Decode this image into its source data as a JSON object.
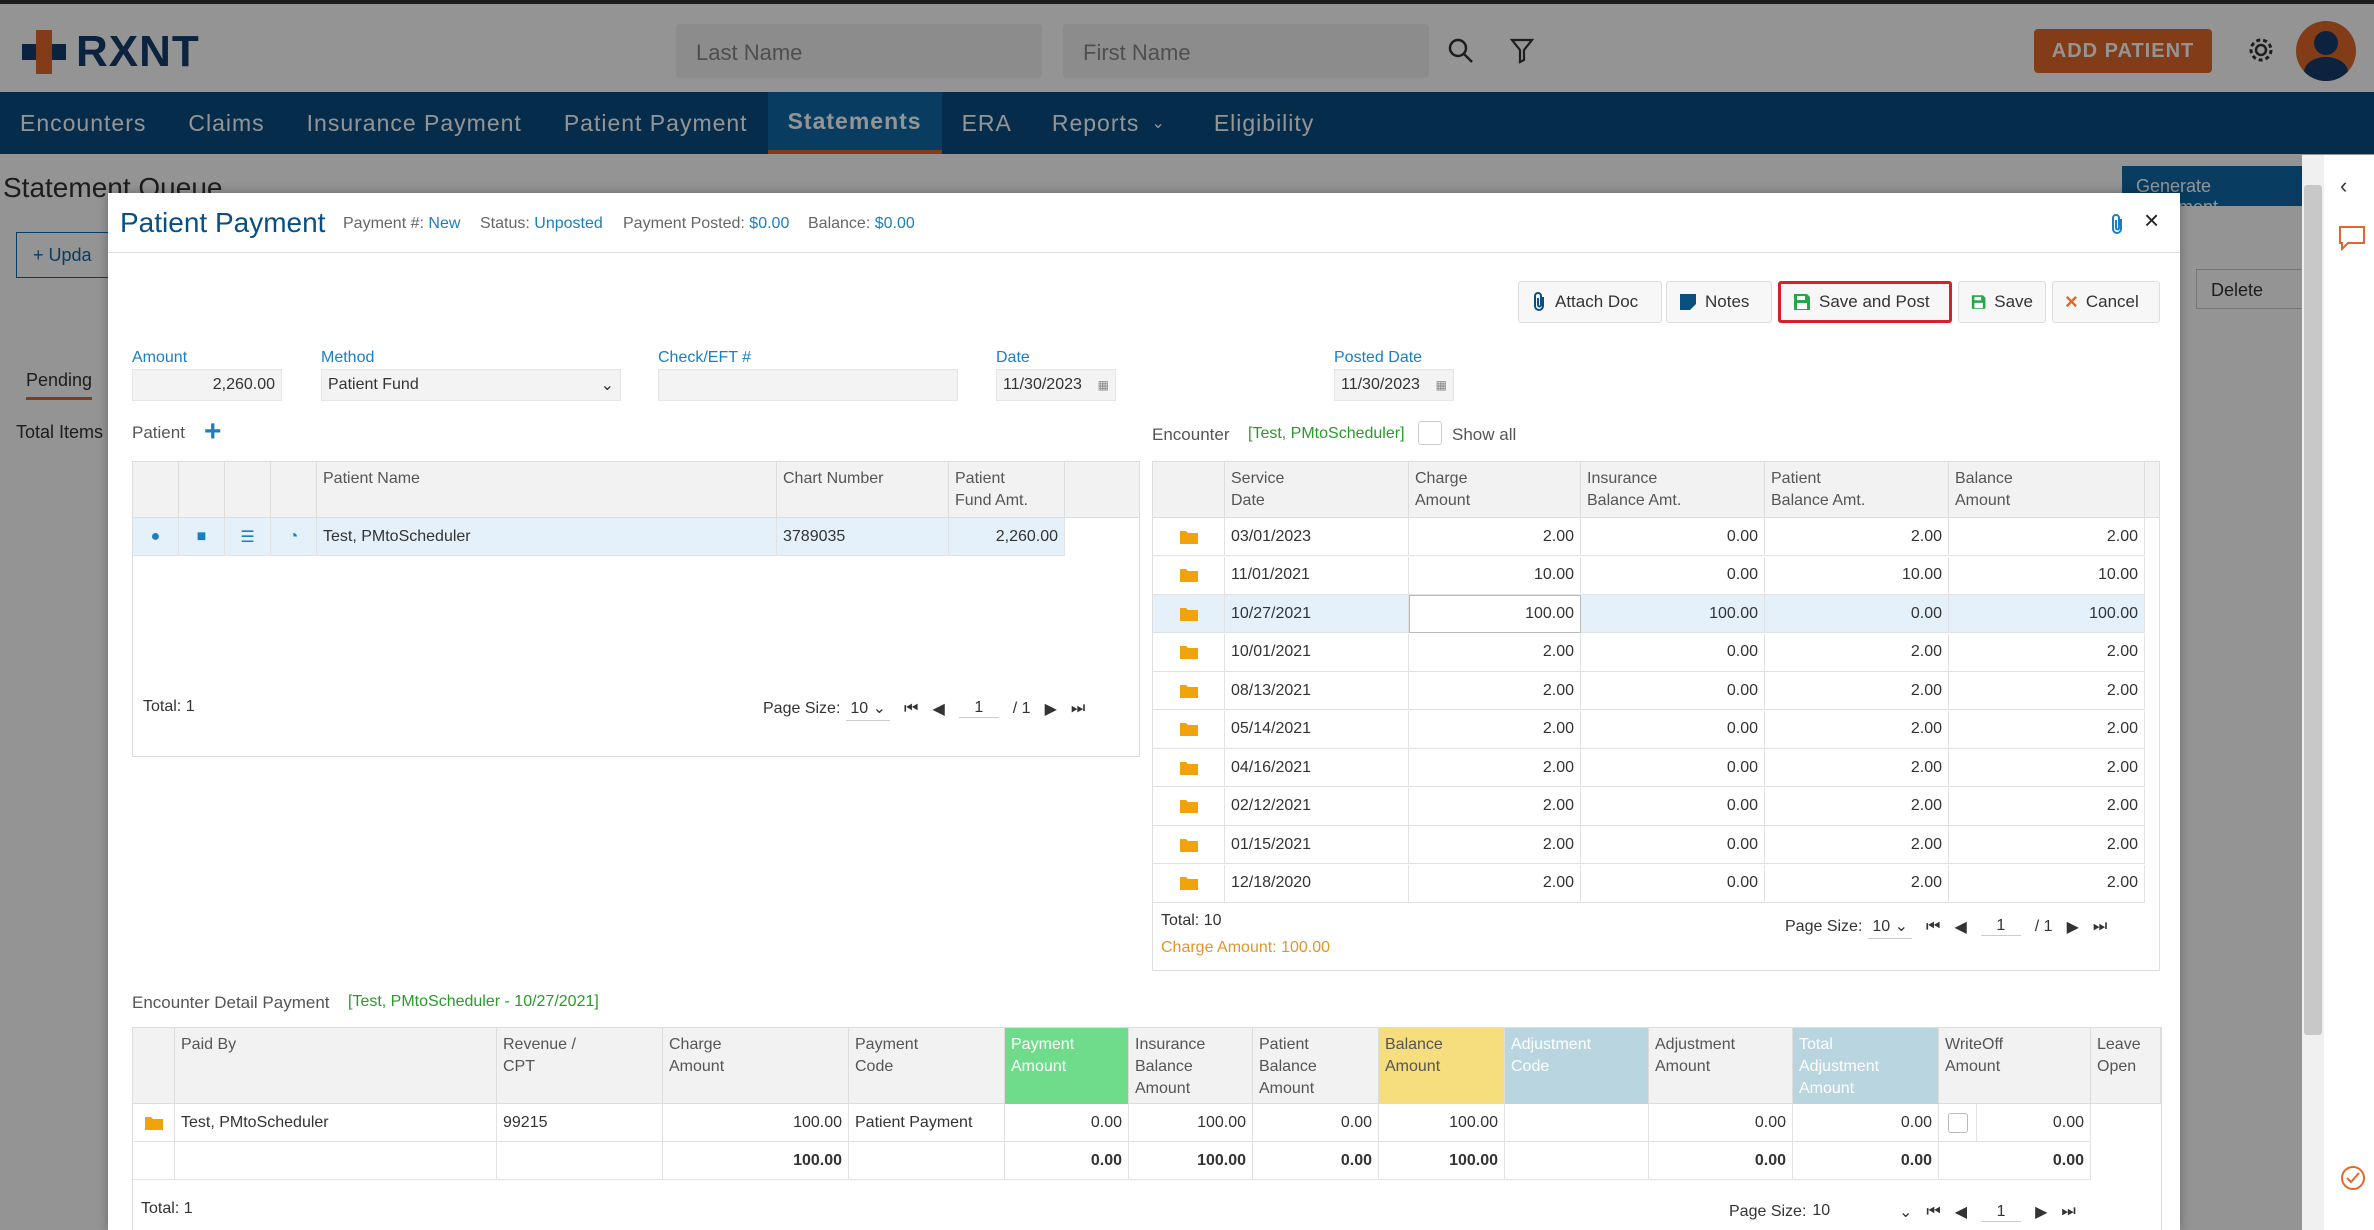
{
  "app": {
    "logo_text": "RXNT",
    "search_last_placeholder": "Last Name",
    "search_first_placeholder": "First Name",
    "add_patient": "ADD PATIENT"
  },
  "nav": [
    "Encounters",
    "Claims",
    "Insurance Payment",
    "Patient Payment",
    "Statements",
    "ERA",
    "Reports",
    "Eligibility"
  ],
  "nav_active": "Statements",
  "background": {
    "page_title": "Statement Queue",
    "generate_btn": "Generate Statement",
    "update_btn": "Upda",
    "delete_btn": "Delete",
    "pending_tab": "Pending",
    "total_items": "Total Items"
  },
  "modal": {
    "title": "Patient Payment",
    "payment_no_label": "Payment #:",
    "payment_no": "New",
    "status_label": "Status:",
    "status": "Unposted",
    "posted_label": "Payment Posted:",
    "posted": "$0.00",
    "balance_label": "Balance:",
    "balance": "$0.00",
    "buttons": {
      "attach": "Attach Doc",
      "notes": "Notes",
      "save_post": "Save and Post",
      "save": "Save",
      "cancel": "Cancel"
    },
    "form": {
      "amount_label": "Amount",
      "amount": "2,260.00",
      "method_label": "Method",
      "method": "Patient Fund",
      "check_label": "Check/EFT #",
      "check": "",
      "date_label": "Date",
      "date": "11/30/2023",
      "posted_date_label": "Posted Date",
      "posted_date": "11/30/2023"
    },
    "patient": {
      "section_label": "Patient",
      "headers": [
        "Patient Name",
        "Chart Number",
        "Patient\nFund Amt."
      ],
      "row": {
        "name": "Test, PMtoScheduler",
        "chart": "3789035",
        "fund": "2,260.00"
      },
      "total": "Total: 1",
      "page_size_label": "Page Size:",
      "page_size": "10",
      "page": "1",
      "page_of": "/ 1"
    },
    "encounter": {
      "section_label": "Encounter",
      "patient_tag": "[Test, PMtoScheduler]",
      "show_all": "Show all",
      "headers": [
        "Service\nDate",
        "Charge\nAmount",
        "Insurance\nBalance Amt.",
        "Patient\nBalance Amt.",
        "Balance\nAmount"
      ],
      "rows": [
        [
          "03/01/2023",
          "2.00",
          "0.00",
          "2.00",
          "2.00"
        ],
        [
          "11/01/2021",
          "10.00",
          "0.00",
          "10.00",
          "10.00"
        ],
        [
          "10/27/2021",
          "100.00",
          "100.00",
          "0.00",
          "100.00"
        ],
        [
          "10/01/2021",
          "2.00",
          "0.00",
          "2.00",
          "2.00"
        ],
        [
          "08/13/2021",
          "2.00",
          "0.00",
          "2.00",
          "2.00"
        ],
        [
          "05/14/2021",
          "2.00",
          "0.00",
          "2.00",
          "2.00"
        ],
        [
          "04/16/2021",
          "2.00",
          "0.00",
          "2.00",
          "2.00"
        ],
        [
          "02/12/2021",
          "2.00",
          "0.00",
          "2.00",
          "2.00"
        ],
        [
          "01/15/2021",
          "2.00",
          "0.00",
          "2.00",
          "2.00"
        ],
        [
          "12/18/2020",
          "2.00",
          "0.00",
          "2.00",
          "2.00"
        ]
      ],
      "selected_row": 2,
      "total": "Total: 10",
      "charge_total": "Charge Amount: 100.00",
      "page_size_label": "Page Size:",
      "page_size": "10",
      "page": "1",
      "page_of": "/ 1"
    },
    "detail": {
      "section_label": "Encounter Detail Payment",
      "tag": "[Test, PMtoScheduler - 10/27/2021]",
      "headers": [
        "Paid By",
        "Revenue /\nCPT",
        "Charge\nAmount",
        "Payment\nCode",
        "Payment\nAmount",
        "Insurance\nBalance\nAmount",
        "Patient\nBalance\nAmount",
        "Balance\nAmount",
        "Adjustment\nCode",
        "Adjustment\nAmount",
        "Total\nAdjustment\nAmount",
        "WriteOff\nAmount",
        "Leave\nOpen"
      ],
      "row": [
        "Test, PMtoScheduler",
        "99215",
        "100.00",
        "Patient Payment",
        "0.00",
        "100.00",
        "0.00",
        "100.00",
        "",
        "0.00",
        "0.00",
        "0.00"
      ],
      "totals": [
        "",
        "",
        "100.00",
        "",
        "0.00",
        "100.00",
        "0.00",
        "100.00",
        "",
        "0.00",
        "0.00",
        "0.00"
      ],
      "total": "Total: 1",
      "page_size_label": "Page Size:",
      "page_size": "10",
      "page": "1"
    }
  },
  "colors": {
    "nav_bg": "#0a4f82",
    "accent_orange": "#e0692a",
    "link_blue": "#1a7fc1",
    "tag_green": "#2a9a2a",
    "payment_col": "#6fdc8c",
    "balance_col": "#f6dd7e",
    "adjust_col": "#b9d5e0"
  }
}
